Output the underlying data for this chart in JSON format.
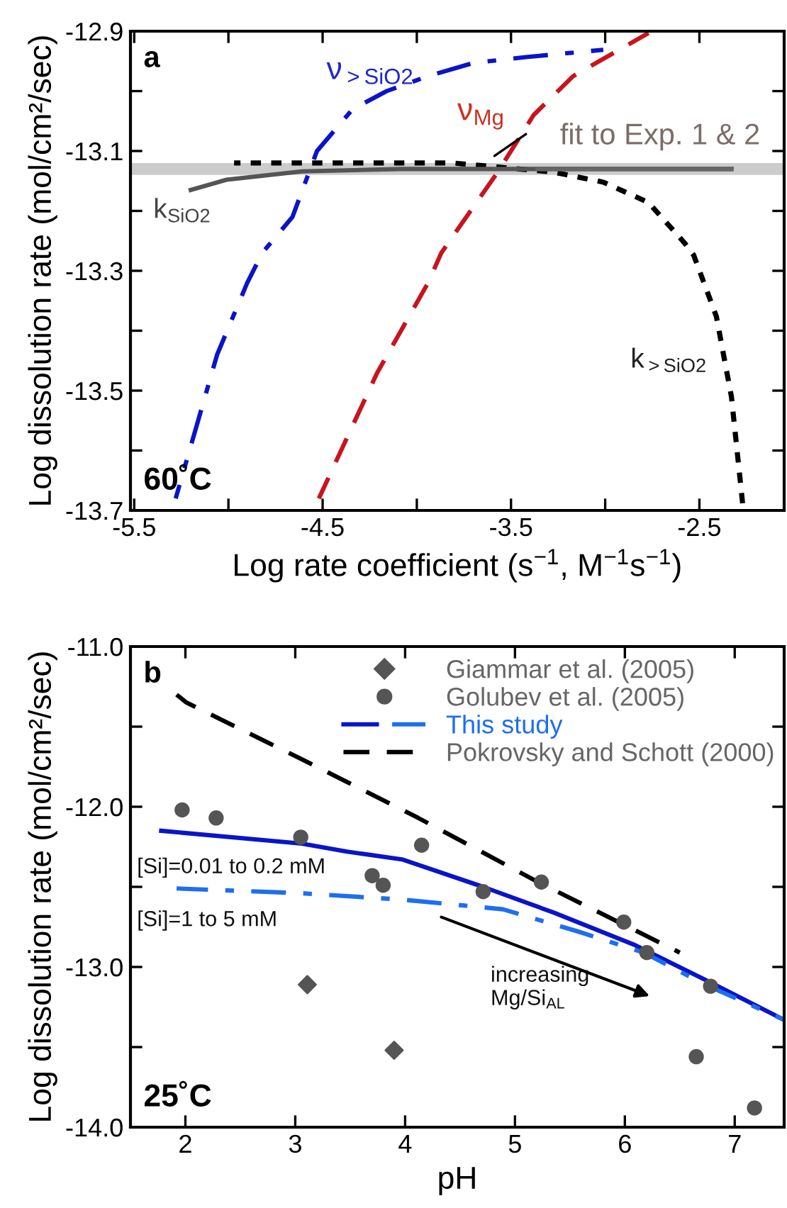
{
  "chart_data": [
    {
      "type": "line",
      "xlabel": "Log rate coefficient (s$^{−1}$, M$^{−1}$s$^{−1}$)",
      "ylabel": "Log dissolution rate (mol/cm²/sec)",
      "xlim": [
        -5.52,
        -2.05
      ],
      "ylim": [
        -13.7,
        -12.9
      ],
      "xticks": [
        {
          "value": -5.5,
          "label": "-5.5"
        },
        {
          "value": -5.0,
          "label": null
        },
        {
          "value": -4.5,
          "label": "-4.5"
        },
        {
          "value": -4.0,
          "label": null
        },
        {
          "value": -3.5,
          "label": "-3.5"
        },
        {
          "value": -3.0,
          "label": null
        },
        {
          "value": -2.5,
          "label": "-2.5"
        }
      ],
      "yticks": [
        {
          "value": -13.7,
          "label": "-13.7"
        },
        {
          "value": -13.6,
          "label": null
        },
        {
          "value": -13.5,
          "label": "-13.5"
        },
        {
          "value": -13.4,
          "label": null
        },
        {
          "value": -13.3,
          "label": "-13.3"
        },
        {
          "value": -13.2,
          "label": null
        },
        {
          "value": -13.1,
          "label": "-13.1"
        },
        {
          "value": -13.0,
          "label": null
        },
        {
          "value": -12.9,
          "label": "-12.9"
        }
      ],
      "grid": false,
      "legend": false,
      "ref_lines": [
        {
          "axis": "y",
          "value": -13.13,
          "color": "#cccccc"
        }
      ],
      "series": [
        {
          "color": "#0a14c8",
          "line_style": "dashdot",
          "x": [
            -5.28,
            -5.06,
            -4.9,
            -4.82,
            -4.66,
            -4.53,
            -4.34,
            -4.16,
            -3.94,
            -3.7,
            -3.41,
            -3.01
          ],
          "values": [
            -13.68,
            -13.44,
            -13.32,
            -13.27,
            -13.21,
            -13.1,
            -13.03,
            -13.0,
            -12.975,
            -12.953,
            -12.943,
            -12.931
          ]
        },
        {
          "color": "#c8141e",
          "line_style": "dashed",
          "x": [
            -4.52,
            -4.21,
            -3.94,
            -3.87,
            -3.57,
            -3.38,
            -3.17,
            -2.77
          ],
          "values": [
            -13.68,
            -13.47,
            -13.32,
            -13.27,
            -13.135,
            -13.04,
            -12.975,
            -12.903
          ]
        },
        {
          "color": "#000000",
          "line_style": "dotted",
          "x": [
            -4.97,
            -3.81,
            -3.28,
            -3.01,
            -2.77,
            -2.58,
            -2.53,
            -2.41,
            -2.33,
            -2.27
          ],
          "values": [
            -13.12,
            -13.12,
            -13.135,
            -13.152,
            -13.186,
            -13.253,
            -13.274,
            -13.376,
            -13.51,
            -13.69
          ]
        },
        {
          "color": "#555555",
          "line_style": "solid",
          "x": [
            -5.2,
            -5.01,
            -4.61,
            -4.08,
            -2.33
          ],
          "values": [
            -13.165,
            -13.148,
            -13.134,
            -13.13,
            -13.13
          ]
        },
        {
          "color": "#666666",
          "line_style": "solid",
          "x": [
            -3.36,
            -2.33
          ],
          "values": [
            -13.13,
            -13.13
          ]
        }
      ],
      "annotations": [
        "a",
        "60˚C",
        "ν$_{>SiO2}$",
        "ν$_{Mg}$",
        "k$_{>SiO2}$",
        "k$_{SiO2}$",
        "fit to Exp. 1 & 2"
      ]
    },
    {
      "type": "line",
      "xlabel": "pH",
      "ylabel": "Log dissolution rate (mol/cm²/sec)",
      "xlim": [
        1.5,
        7.45
      ],
      "ylim": [
        -14.0,
        -11.0
      ],
      "xticks": [
        2,
        3,
        4,
        5,
        6,
        7
      ],
      "yticks": [
        {
          "value": -14.0,
          "label": "-14.0"
        },
        {
          "value": -13.5,
          "label": null
        },
        {
          "value": -13.0,
          "label": "-13.0"
        },
        {
          "value": -12.5,
          "label": null
        },
        {
          "value": -12.0,
          "label": "-12.0"
        },
        {
          "value": -11.5,
          "label": null
        },
        {
          "value": -11.0,
          "label": "-11.0"
        }
      ],
      "grid": false,
      "legend": "top right",
      "series": [
        {
          "type": "scatter",
          "name": "Giammar et al. (2005)",
          "color": "#555555",
          "marker": "diamond",
          "x": [
            3.11,
            3.9
          ],
          "values": [
            -13.11,
            -13.52
          ]
        },
        {
          "type": "scatter",
          "name": "Golubev et al. (2005)",
          "color": "#555555",
          "marker": "circle",
          "x": [
            1.97,
            2.28,
            3.05,
            3.7,
            3.8,
            4.15,
            4.71,
            5.24,
            5.99,
            6.2,
            6.65,
            6.78,
            7.18
          ],
          "values": [
            -12.02,
            -12.07,
            -12.19,
            -12.43,
            -12.49,
            -12.24,
            -12.53,
            -12.47,
            -12.72,
            -12.91,
            -13.56,
            -13.12,
            -13.88
          ]
        },
        {
          "color": "#0a14c8",
          "line_style": "solid",
          "x": [
            1.78,
            3.06,
            3.47,
            3.98,
            4.71,
            5.35,
            6.08,
            6.73,
            7.45
          ],
          "values": [
            -12.15,
            -12.23,
            -12.28,
            -12.33,
            -12.5,
            -12.66,
            -12.86,
            -13.08,
            -13.33
          ]
        },
        {
          "name": "This study",
          "color": "#1e6ef0",
          "line_style": "dashdot",
          "x": [
            1.92,
            3.06,
            3.98,
            4.89,
            5.58,
            6.17,
            6.73,
            7.45
          ],
          "values": [
            -12.51,
            -12.54,
            -12.58,
            -12.64,
            -12.78,
            -12.91,
            -13.11,
            -13.33
          ]
        },
        {
          "name": "Pokrovsky and Schott (2000)",
          "color": "#000000",
          "line_style": "dashed",
          "x": [
            1.92,
            2.01,
            3.02,
            4.12,
            5.21,
            6.5
          ],
          "values": [
            -11.3,
            -11.35,
            -11.69,
            -12.07,
            -12.47,
            -12.91
          ]
        }
      ],
      "annotations": [
        "b",
        "25˚C",
        "[Si]=0.01 to 0.2 mM",
        "[Si]=1 to 5 mM",
        "increasing\nMg/Si$_{AL}$"
      ]
    }
  ]
}
